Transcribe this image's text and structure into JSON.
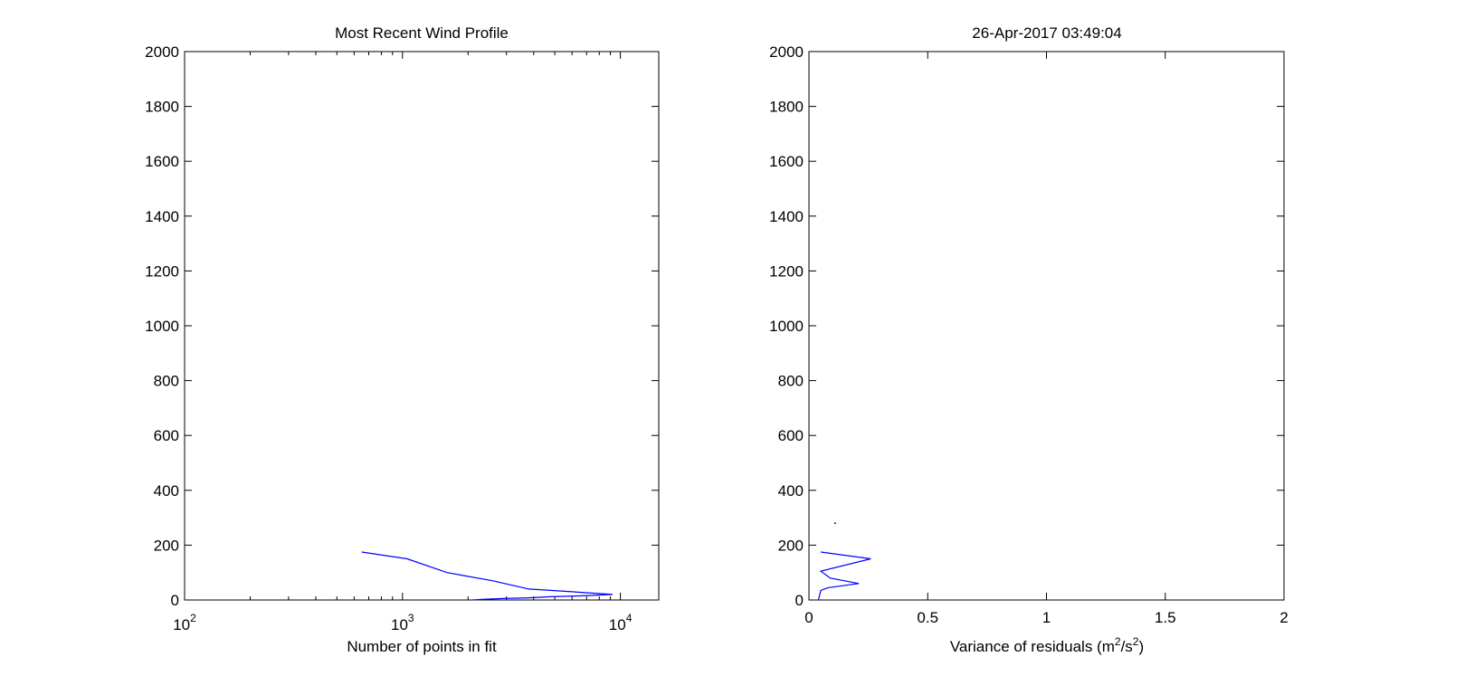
{
  "chart_data": [
    {
      "type": "line",
      "title": "Most Recent Wind Profile",
      "xlabel": "Number of points in fit",
      "ylabel": "",
      "xscale": "log",
      "xlim": [
        100,
        15000
      ],
      "ylim": [
        0,
        2000
      ],
      "xticks": [
        {
          "value": 100,
          "base": "10",
          "exp": "2"
        },
        {
          "value": 1000,
          "base": "10",
          "exp": "3"
        },
        {
          "value": 10000,
          "base": "10",
          "exp": "4"
        }
      ],
      "yticks": [
        0,
        200,
        400,
        600,
        800,
        1000,
        1200,
        1400,
        1600,
        1800,
        2000
      ],
      "grid": false,
      "line_color": "#0000ff",
      "series": [
        {
          "points": [
            [
              650,
              175
            ],
            [
              1050,
              150
            ],
            [
              1600,
              100
            ],
            [
              2600,
              70
            ],
            [
              3800,
              40
            ],
            [
              6000,
              30
            ],
            [
              9200,
              20
            ],
            [
              6500,
              15
            ],
            [
              4800,
              12
            ],
            [
              3800,
              8
            ],
            [
              2800,
              5
            ],
            [
              2300,
              2
            ],
            [
              2100,
              0
            ]
          ]
        }
      ]
    },
    {
      "type": "line",
      "title": "26-Apr-2017 03:49:04",
      "xlabel": "Variance of residuals (m²/s²)",
      "xlabel_parts": {
        "pre": "Variance of residuals (m",
        "sup1": "2",
        "mid": "/s",
        "sup2": "2",
        "post": ")"
      },
      "ylabel": "",
      "xscale": "linear",
      "xlim": [
        0,
        2
      ],
      "ylim": [
        0,
        2000
      ],
      "xticks": [
        "0",
        "0.5",
        "1",
        "1.5",
        "2"
      ],
      "yticks": [
        0,
        200,
        400,
        600,
        800,
        1000,
        1200,
        1400,
        1600,
        1800,
        2000
      ],
      "grid": false,
      "line_color": "#0000ff",
      "series": [
        {
          "points": [
            [
              0.04,
              0
            ],
            [
              0.05,
              35
            ],
            [
              0.08,
              45
            ],
            [
              0.21,
              60
            ],
            [
              0.09,
              80
            ],
            [
              0.05,
              105
            ],
            [
              0.26,
              150
            ],
            [
              0.05,
              175
            ]
          ]
        }
      ],
      "markers": [
        [
          0.11,
          280
        ]
      ]
    }
  ]
}
